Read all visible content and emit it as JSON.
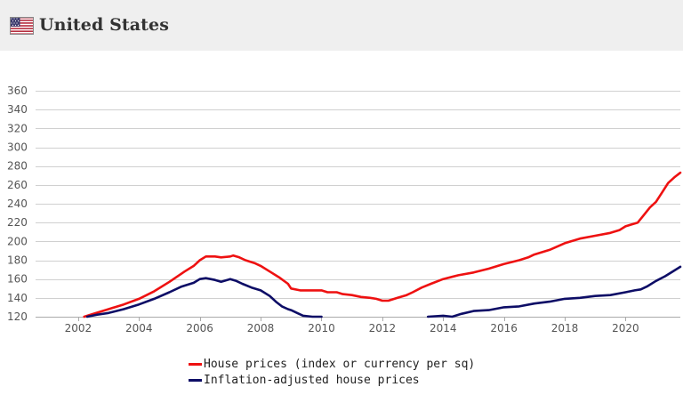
{
  "header": {
    "title": "United States",
    "flag_icon": "us-flag-icon"
  },
  "colors": {
    "nominal": "#ee1111",
    "real": "#0d0d66",
    "grid": "#d0d0d0",
    "header_bg": "#efefef"
  },
  "chart_data": {
    "type": "line",
    "title": "",
    "xlabel": "",
    "ylabel": "",
    "xlim": [
      2000.6,
      2021.8
    ],
    "ylim": [
      120,
      360
    ],
    "y_ticks": [
      120,
      140,
      160,
      180,
      200,
      220,
      240,
      260,
      280,
      300,
      320,
      340,
      360
    ],
    "x_ticks": [
      2002,
      2004,
      2006,
      2008,
      2010,
      2012,
      2014,
      2016,
      2018,
      2020
    ],
    "grid": "horizontal",
    "legend_position": "bottom",
    "series": [
      {
        "name": "House prices (index or currency per sq)",
        "color": "#ee1111",
        "points": [
          [
            2002.2,
            120
          ],
          [
            2002.5,
            123
          ],
          [
            2003.0,
            128
          ],
          [
            2003.5,
            133
          ],
          [
            2004.0,
            139
          ],
          [
            2004.5,
            147
          ],
          [
            2005.0,
            157
          ],
          [
            2005.5,
            168
          ],
          [
            2005.8,
            174
          ],
          [
            2006.0,
            180
          ],
          [
            2006.2,
            184
          ],
          [
            2006.5,
            184
          ],
          [
            2006.7,
            183
          ],
          [
            2007.0,
            184
          ],
          [
            2007.1,
            185
          ],
          [
            2007.3,
            183
          ],
          [
            2007.5,
            180
          ],
          [
            2007.8,
            177
          ],
          [
            2008.0,
            174
          ],
          [
            2008.3,
            168
          ],
          [
            2008.6,
            162
          ],
          [
            2008.9,
            155
          ],
          [
            2009.0,
            150
          ],
          [
            2009.3,
            148
          ],
          [
            2009.5,
            148
          ],
          [
            2010.0,
            148
          ],
          [
            2010.2,
            146
          ],
          [
            2010.5,
            146
          ],
          [
            2010.7,
            144
          ],
          [
            2011.0,
            143
          ],
          [
            2011.3,
            141
          ],
          [
            2011.6,
            140
          ],
          [
            2011.8,
            139
          ],
          [
            2012.0,
            137
          ],
          [
            2012.2,
            137
          ],
          [
            2012.5,
            140
          ],
          [
            2012.8,
            143
          ],
          [
            2013.0,
            146
          ],
          [
            2013.3,
            151
          ],
          [
            2013.6,
            155
          ],
          [
            2014.0,
            160
          ],
          [
            2014.5,
            164
          ],
          [
            2015.0,
            167
          ],
          [
            2015.5,
            171
          ],
          [
            2016.0,
            176
          ],
          [
            2016.5,
            180
          ],
          [
            2016.8,
            183
          ],
          [
            2017.0,
            186
          ],
          [
            2017.5,
            191
          ],
          [
            2018.0,
            198
          ],
          [
            2018.5,
            203
          ],
          [
            2019.0,
            206
          ],
          [
            2019.5,
            209
          ],
          [
            2019.8,
            212
          ],
          [
            2020.0,
            216
          ],
          [
            2020.2,
            218
          ],
          [
            2020.4,
            220
          ],
          [
            2020.6,
            228
          ],
          [
            2020.8,
            236
          ],
          [
            2021.0,
            242
          ],
          [
            2021.2,
            252
          ],
          [
            2021.4,
            262
          ],
          [
            2021.6,
            268
          ],
          [
            2021.8,
            273
          ]
        ]
      },
      {
        "name": "Inflation-adjusted house prices",
        "color": "#0d0d66",
        "points": [
          [
            2002.3,
            120
          ],
          [
            2002.6,
            122
          ],
          [
            2003.0,
            124
          ],
          [
            2003.5,
            128
          ],
          [
            2004.0,
            133
          ],
          [
            2004.5,
            139
          ],
          [
            2005.0,
            146
          ],
          [
            2005.4,
            152
          ],
          [
            2005.8,
            156
          ],
          [
            2006.0,
            160
          ],
          [
            2006.2,
            161
          ],
          [
            2006.5,
            159
          ],
          [
            2006.7,
            157
          ],
          [
            2007.0,
            160
          ],
          [
            2007.2,
            158
          ],
          [
            2007.4,
            155
          ],
          [
            2007.7,
            151
          ],
          [
            2008.0,
            148
          ],
          [
            2008.3,
            142
          ],
          [
            2008.5,
            136
          ],
          [
            2008.7,
            131
          ],
          [
            2008.9,
            128
          ],
          [
            2009.0,
            127
          ],
          [
            2009.2,
            124
          ],
          [
            2009.4,
            121
          ],
          [
            2009.7,
            120
          ],
          [
            2010.0,
            120
          ]
        ],
        "points_after_gap": [
          [
            2013.5,
            120
          ],
          [
            2014.0,
            121
          ],
          [
            2014.3,
            120
          ],
          [
            2014.6,
            123
          ],
          [
            2015.0,
            126
          ],
          [
            2015.5,
            127
          ],
          [
            2016.0,
            130
          ],
          [
            2016.5,
            131
          ],
          [
            2017.0,
            134
          ],
          [
            2017.5,
            136
          ],
          [
            2018.0,
            139
          ],
          [
            2018.5,
            140
          ],
          [
            2019.0,
            142
          ],
          [
            2019.5,
            143
          ],
          [
            2020.0,
            146
          ],
          [
            2020.3,
            148
          ],
          [
            2020.5,
            149
          ],
          [
            2020.7,
            152
          ],
          [
            2021.0,
            158
          ],
          [
            2021.3,
            163
          ],
          [
            2021.6,
            169
          ],
          [
            2021.8,
            173
          ]
        ]
      }
    ]
  }
}
